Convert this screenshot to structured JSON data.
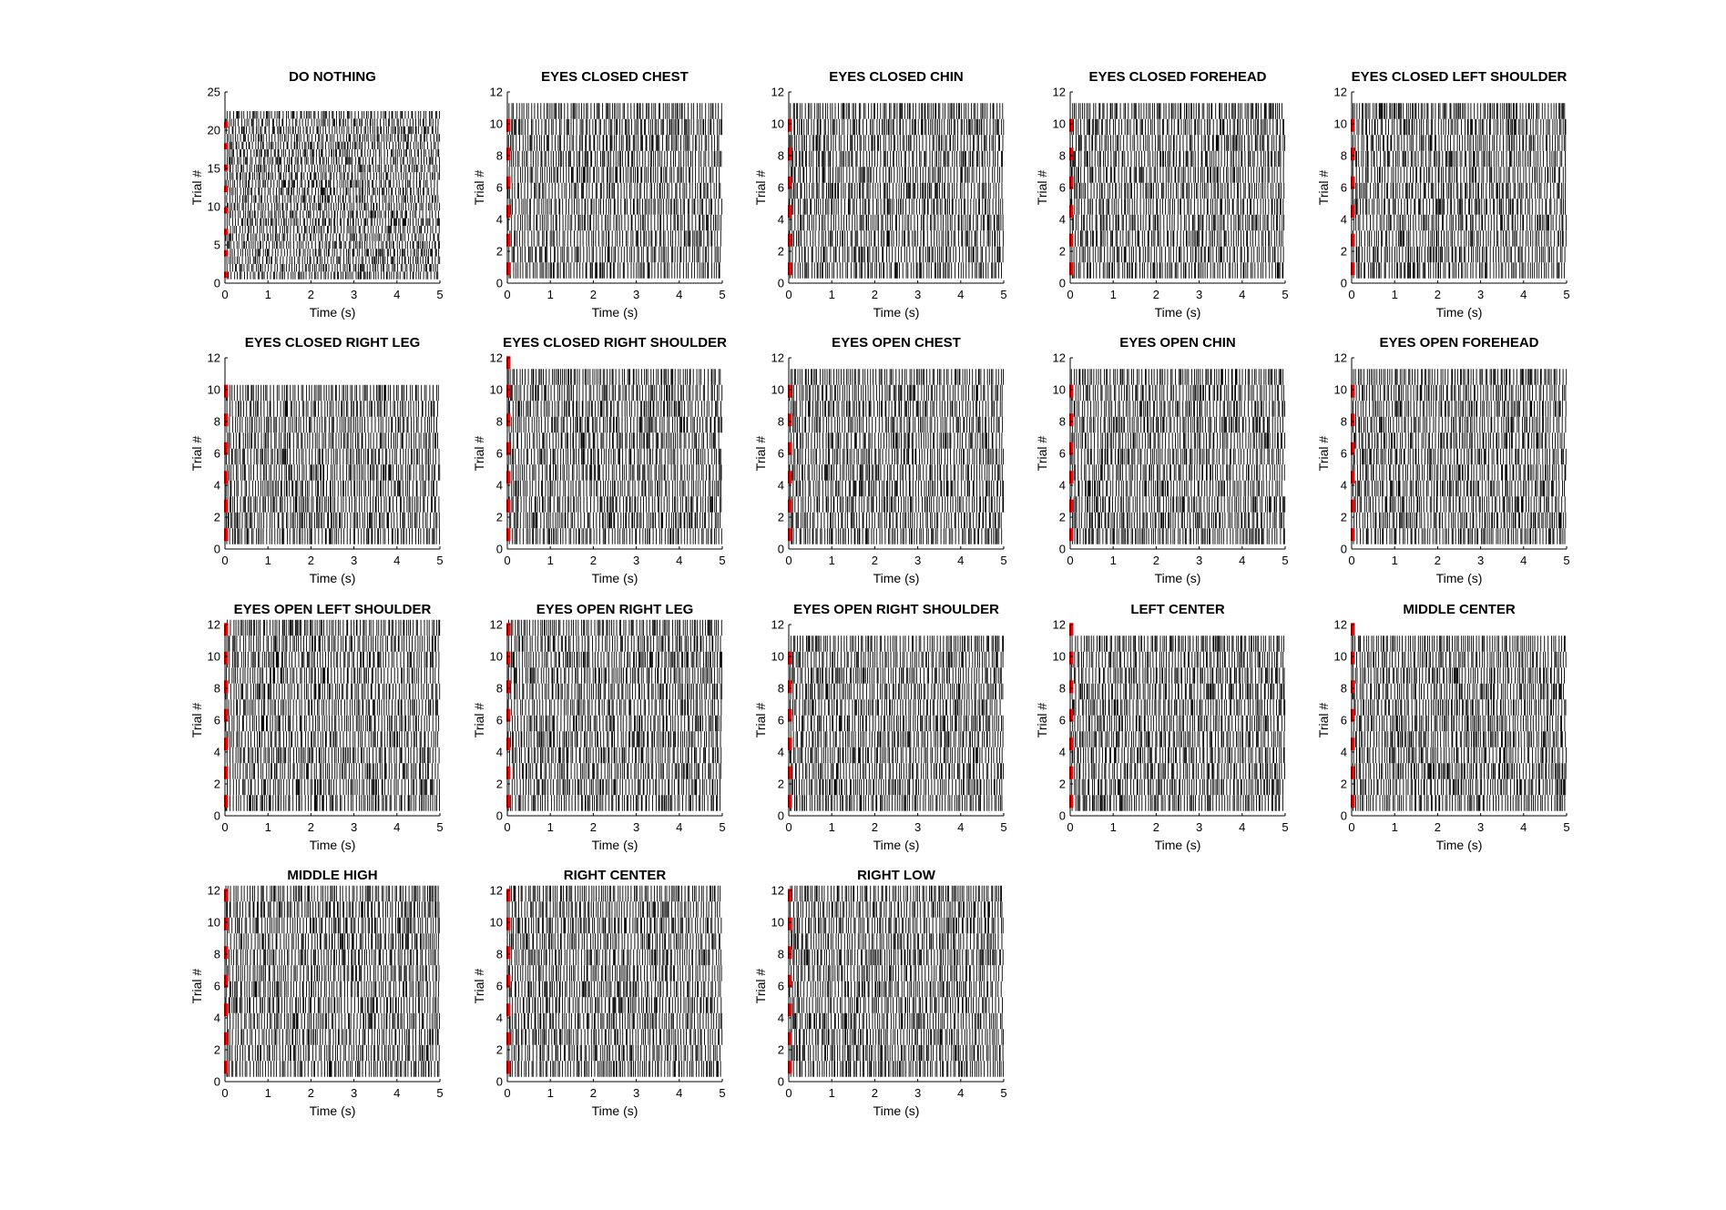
{
  "figure": {
    "background": "#ffffff",
    "spike_color": "#000000",
    "trial_onset_color": "#ff0000"
  },
  "chart_data": [
    {
      "type": "raster",
      "title": "DO NOTHING",
      "xlabel": "Time (s)",
      "ylabel": "Trial #",
      "xlim": [
        0,
        5
      ],
      "ylim": [
        0,
        25
      ],
      "xticks": [
        "0",
        "1",
        "2",
        "3",
        "4",
        "5"
      ],
      "yticks": [
        "0",
        "5",
        "10",
        "15",
        "20",
        "25"
      ],
      "n_trials": 22,
      "trial_onset_markers": [
        0.7,
        3.5,
        6.3,
        9.1,
        11.9,
        14.7,
        17.5,
        20.3
      ]
    },
    {
      "type": "raster",
      "title": "EYES CLOSED CHEST",
      "xlabel": "Time (s)",
      "ylabel": "Trial #",
      "xlim": [
        0,
        5
      ],
      "ylim": [
        0,
        12
      ],
      "xticks": [
        "0",
        "1",
        "2",
        "3",
        "4",
        "5"
      ],
      "yticks": [
        "0",
        "2",
        "4",
        "6",
        "8",
        "10",
        "12"
      ],
      "n_trials": 11,
      "trial_onset_markers": [
        0.5,
        2.3,
        4.1,
        5.9,
        7.7,
        9.5
      ]
    },
    {
      "type": "raster",
      "title": "EYES CLOSED CHIN",
      "xlabel": "Time (s)",
      "ylabel": "Trial #",
      "xlim": [
        0,
        5
      ],
      "ylim": [
        0,
        12
      ],
      "xticks": [
        "0",
        "1",
        "2",
        "3",
        "4",
        "5"
      ],
      "yticks": [
        "0",
        "2",
        "4",
        "6",
        "8",
        "10",
        "12"
      ],
      "n_trials": 11,
      "trial_onset_markers": [
        0.5,
        2.3,
        4.1,
        5.9,
        7.7,
        9.5
      ]
    },
    {
      "type": "raster",
      "title": "EYES CLOSED FOREHEAD",
      "xlabel": "Time (s)",
      "ylabel": "Trial #",
      "xlim": [
        0,
        5
      ],
      "ylim": [
        0,
        12
      ],
      "xticks": [
        "0",
        "1",
        "2",
        "3",
        "4",
        "5"
      ],
      "yticks": [
        "0",
        "2",
        "4",
        "6",
        "8",
        "10",
        "12"
      ],
      "n_trials": 11,
      "trial_onset_markers": [
        0.5,
        2.3,
        4.1,
        5.9,
        7.7,
        9.5
      ]
    },
    {
      "type": "raster",
      "title": "EYES CLOSED LEFT SHOULDER",
      "xlabel": "Time (s)",
      "ylabel": "Trial #",
      "xlim": [
        0,
        5
      ],
      "ylim": [
        0,
        12
      ],
      "xticks": [
        "0",
        "1",
        "2",
        "3",
        "4",
        "5"
      ],
      "yticks": [
        "0",
        "2",
        "4",
        "6",
        "8",
        "10",
        "12"
      ],
      "n_trials": 11,
      "trial_onset_markers": [
        0.5,
        2.3,
        4.1,
        5.9,
        7.7,
        9.5
      ]
    },
    {
      "type": "raster",
      "title": "EYES CLOSED RIGHT LEG",
      "xlabel": "Time (s)",
      "ylabel": "Trial #",
      "xlim": [
        0,
        5
      ],
      "ylim": [
        0,
        12
      ],
      "xticks": [
        "0",
        "1",
        "2",
        "3",
        "4",
        "5"
      ],
      "yticks": [
        "0",
        "2",
        "4",
        "6",
        "8",
        "10",
        "12"
      ],
      "n_trials": 10,
      "trial_onset_markers": [
        0.5,
        2.3,
        4.1,
        5.9,
        7.7,
        9.5
      ]
    },
    {
      "type": "raster",
      "title": "EYES CLOSED RIGHT SHOULDER",
      "xlabel": "Time (s)",
      "ylabel": "Trial #",
      "xlim": [
        0,
        5
      ],
      "ylim": [
        0,
        12
      ],
      "xticks": [
        "0",
        "1",
        "2",
        "3",
        "4",
        "5"
      ],
      "yticks": [
        "0",
        "2",
        "4",
        "6",
        "8",
        "10",
        "12"
      ],
      "n_trials": 11,
      "trial_onset_markers": [
        0.5,
        2.3,
        4.1,
        5.9,
        7.7,
        9.5,
        11.3
      ]
    },
    {
      "type": "raster",
      "title": "EYES OPEN CHEST",
      "xlabel": "Time (s)",
      "ylabel": "Trial #",
      "xlim": [
        0,
        5
      ],
      "ylim": [
        0,
        12
      ],
      "xticks": [
        "0",
        "1",
        "2",
        "3",
        "4",
        "5"
      ],
      "yticks": [
        "0",
        "2",
        "4",
        "6",
        "8",
        "10",
        "12"
      ],
      "n_trials": 11,
      "trial_onset_markers": [
        0.5,
        2.3,
        4.1,
        5.9,
        7.7,
        9.5
      ]
    },
    {
      "type": "raster",
      "title": "EYES OPEN CHIN",
      "xlabel": "Time (s)",
      "ylabel": "Trial #",
      "xlim": [
        0,
        5
      ],
      "ylim": [
        0,
        12
      ],
      "xticks": [
        "0",
        "1",
        "2",
        "3",
        "4",
        "5"
      ],
      "yticks": [
        "0",
        "2",
        "4",
        "6",
        "8",
        "10",
        "12"
      ],
      "n_trials": 11,
      "trial_onset_markers": [
        0.5,
        2.3,
        4.1,
        5.9,
        7.7,
        9.5
      ]
    },
    {
      "type": "raster",
      "title": "EYES OPEN FOREHEAD",
      "xlabel": "Time (s)",
      "ylabel": "Trial #",
      "xlim": [
        0,
        5
      ],
      "ylim": [
        0,
        12
      ],
      "xticks": [
        "0",
        "1",
        "2",
        "3",
        "4",
        "5"
      ],
      "yticks": [
        "0",
        "2",
        "4",
        "6",
        "8",
        "10",
        "12"
      ],
      "n_trials": 11,
      "trial_onset_markers": [
        0.5,
        2.3,
        4.1,
        5.9,
        7.7,
        9.5
      ]
    },
    {
      "type": "raster",
      "title": "EYES OPEN LEFT SHOULDER",
      "xlabel": "Time (s)",
      "ylabel": "Trial #",
      "xlim": [
        0,
        5
      ],
      "ylim": [
        0,
        12
      ],
      "xticks": [
        "0",
        "1",
        "2",
        "3",
        "4",
        "5"
      ],
      "yticks": [
        "0",
        "2",
        "4",
        "6",
        "8",
        "10",
        "12"
      ],
      "n_trials": 12,
      "trial_onset_markers": [
        0.5,
        2.3,
        4.1,
        5.9,
        7.7,
        9.5,
        11.3
      ]
    },
    {
      "type": "raster",
      "title": "EYES OPEN RIGHT LEG",
      "xlabel": "Time (s)",
      "ylabel": "Trial #",
      "xlim": [
        0,
        5
      ],
      "ylim": [
        0,
        12
      ],
      "xticks": [
        "0",
        "1",
        "2",
        "3",
        "4",
        "5"
      ],
      "yticks": [
        "0",
        "2",
        "4",
        "6",
        "8",
        "10",
        "12"
      ],
      "n_trials": 12,
      "trial_onset_markers": [
        0.5,
        2.3,
        4.1,
        5.9,
        7.7,
        9.5,
        11.3
      ]
    },
    {
      "type": "raster",
      "title": "EYES OPEN RIGHT SHOULDER",
      "xlabel": "Time (s)",
      "ylabel": "Trial #",
      "xlim": [
        0,
        5
      ],
      "ylim": [
        0,
        12
      ],
      "xticks": [
        "0",
        "1",
        "2",
        "3",
        "4",
        "5"
      ],
      "yticks": [
        "0",
        "2",
        "4",
        "6",
        "8",
        "10",
        "12"
      ],
      "n_trials": 11,
      "trial_onset_markers": [
        0.5,
        2.3,
        4.1,
        5.9,
        7.7,
        9.5
      ]
    },
    {
      "type": "raster",
      "title": "LEFT CENTER",
      "xlabel": "Time (s)",
      "ylabel": "Trial #",
      "xlim": [
        0,
        5
      ],
      "ylim": [
        0,
        12
      ],
      "xticks": [
        "0",
        "1",
        "2",
        "3",
        "4",
        "5"
      ],
      "yticks": [
        "0",
        "2",
        "4",
        "6",
        "8",
        "10",
        "12"
      ],
      "n_trials": 11,
      "trial_onset_markers": [
        0.5,
        2.3,
        4.1,
        5.9,
        7.7,
        9.5,
        11.3
      ]
    },
    {
      "type": "raster",
      "title": "MIDDLE CENTER",
      "xlabel": "Time (s)",
      "ylabel": "Trial #",
      "xlim": [
        0,
        5
      ],
      "ylim": [
        0,
        12
      ],
      "xticks": [
        "0",
        "1",
        "2",
        "3",
        "4",
        "5"
      ],
      "yticks": [
        "0",
        "2",
        "4",
        "6",
        "8",
        "10",
        "12"
      ],
      "n_trials": 11,
      "trial_onset_markers": [
        0.5,
        2.3,
        4.1,
        5.9,
        7.7,
        9.5,
        11.3
      ]
    },
    {
      "type": "raster",
      "title": "MIDDLE HIGH",
      "xlabel": "Time (s)",
      "ylabel": "Trial #",
      "xlim": [
        0,
        5
      ],
      "ylim": [
        0,
        12
      ],
      "xticks": [
        "0",
        "1",
        "2",
        "3",
        "4",
        "5"
      ],
      "yticks": [
        "0",
        "2",
        "4",
        "6",
        "8",
        "10",
        "12"
      ],
      "n_trials": 12,
      "trial_onset_markers": [
        0.5,
        2.3,
        4.1,
        5.9,
        7.7,
        9.5,
        11.3
      ]
    },
    {
      "type": "raster",
      "title": "RIGHT CENTER",
      "xlabel": "Time (s)",
      "ylabel": "Trial #",
      "xlim": [
        0,
        5
      ],
      "ylim": [
        0,
        12
      ],
      "xticks": [
        "0",
        "1",
        "2",
        "3",
        "4",
        "5"
      ],
      "yticks": [
        "0",
        "2",
        "4",
        "6",
        "8",
        "10",
        "12"
      ],
      "n_trials": 12,
      "trial_onset_markers": [
        0.5,
        2.3,
        4.1,
        5.9,
        7.7,
        9.5,
        11.3
      ]
    },
    {
      "type": "raster",
      "title": "RIGHT LOW",
      "xlabel": "Time (s)",
      "ylabel": "Trial #",
      "xlim": [
        0,
        5
      ],
      "ylim": [
        0,
        12
      ],
      "xticks": [
        "0",
        "1",
        "2",
        "3",
        "4",
        "5"
      ],
      "yticks": [
        "0",
        "2",
        "4",
        "6",
        "8",
        "10",
        "12"
      ],
      "n_trials": 12,
      "trial_onset_markers": [
        0.5,
        2.3,
        4.1,
        5.9,
        7.7,
        9.5,
        11.3
      ]
    }
  ]
}
